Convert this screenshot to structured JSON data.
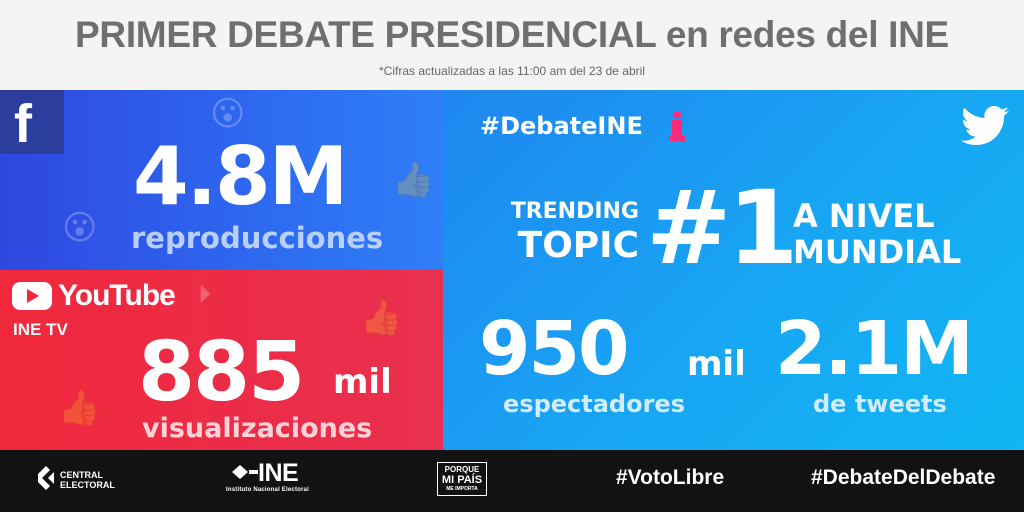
{
  "header": {
    "title": "PRIMER DEBATE PRESIDENCIAL en redes del INE",
    "subtitle": "*Cifras actualizadas a las 11:00 am del 23 de abril"
  },
  "facebook": {
    "icon": "f",
    "value": "4.8M",
    "label": "reproducciones",
    "color": "#2e6af0"
  },
  "youtube": {
    "brand": "YouTube",
    "channel": "INE TV",
    "value": "885",
    "unit": "mil",
    "label": "visualizaciones",
    "color": "#f0283c"
  },
  "twitter": {
    "hashtag": "#DebateINE",
    "trending_left_1": "TRENDING",
    "trending_left_2": "TOPIC",
    "trending_rank": "#1",
    "trending_right_1": "A NIVEL",
    "trending_right_2": "MUNDIAL",
    "viewers_value": "950",
    "viewers_unit": "mil",
    "viewers_label": "espectadores",
    "tweets_value": "2.1M",
    "tweets_label": "de tweets",
    "color": "#18a6f3"
  },
  "footer": {
    "central_electoral_1": "CENTRAL",
    "central_electoral_2": "ELECTORAL",
    "ine": "INE",
    "ine_sub": "Instituto Nacional Electoral",
    "pmp_1": "PORQUE",
    "pmp_2": "MI PAÍS",
    "pmp_3": "ME IMPORTA",
    "tag_1": "#VotoLibre",
    "tag_2": "#DebateDelDebate"
  }
}
